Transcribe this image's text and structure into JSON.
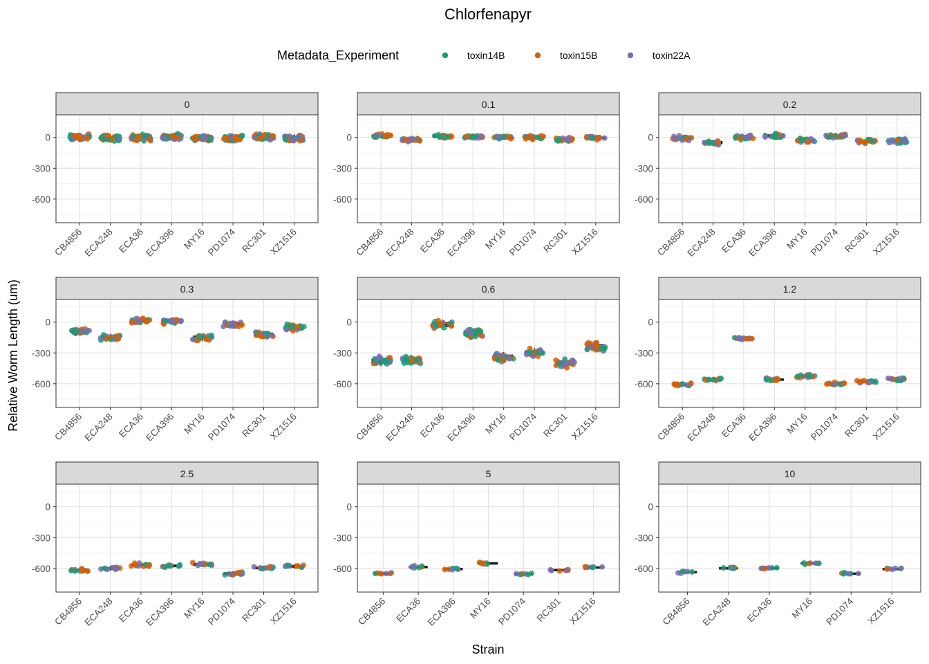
{
  "chart_data": {
    "type": "scatter",
    "title": "Chlorfenapyr",
    "xlabel": "Strain",
    "ylabel": "Relative Worm Length (um)",
    "ylim": [
      -830,
      220
    ],
    "yticks": [
      0,
      -300,
      -600
    ],
    "legend": {
      "title": "Metadata_Experiment",
      "position": "top",
      "entries": [
        {
          "name": "toxin14B",
          "color": "#1B9E77"
        },
        {
          "name": "toxin15B",
          "color": "#D95F02"
        },
        {
          "name": "toxin22A",
          "color": "#7570B3"
        }
      ]
    },
    "grid": true,
    "panels": [
      {
        "label": "0",
        "categories": [
          "CB4856",
          "ECA248",
          "ECA36",
          "ECA396",
          "MY16",
          "PD1074",
          "RC301",
          "XZ1516"
        ],
        "values": [
          5,
          -5,
          0,
          5,
          -5,
          -5,
          5,
          -5
        ],
        "spread": 40,
        "npts": 45
      },
      {
        "label": "0.1",
        "categories": [
          "CB4856",
          "ECA248",
          "ECA36",
          "ECA396",
          "MY16",
          "PD1074",
          "RC301",
          "XZ1516"
        ],
        "values": [
          15,
          -25,
          10,
          5,
          0,
          0,
          -20,
          -5
        ],
        "spread": 25,
        "npts": 20
      },
      {
        "label": "0.2",
        "categories": [
          "CB4856",
          "ECA248",
          "ECA36",
          "ECA396",
          "MY16",
          "PD1074",
          "RC301",
          "XZ1516"
        ],
        "values": [
          -10,
          -50,
          0,
          15,
          -25,
          10,
          -35,
          -35
        ],
        "spread": 30,
        "npts": 20
      },
      {
        "label": "0.3",
        "categories": [
          "CB4856",
          "ECA248",
          "ECA36",
          "ECA396",
          "MY16",
          "PD1074",
          "RC301",
          "XZ1516"
        ],
        "values": [
          -90,
          -150,
          15,
          10,
          -150,
          -20,
          -120,
          -50
        ],
        "spread": 40,
        "npts": 25
      },
      {
        "label": "0.6",
        "categories": [
          "CB4856",
          "ECA248",
          "ECA36",
          "ECA396",
          "MY16",
          "PD1074",
          "RC301",
          "XZ1516"
        ],
        "values": [
          -380,
          -370,
          -25,
          -110,
          -340,
          -300,
          -400,
          -240
        ],
        "spread": 55,
        "npts": 28
      },
      {
        "label": "1.2",
        "categories": [
          "CB4856",
          "ECA248",
          "ECA36",
          "ECA396",
          "MY16",
          "PD1074",
          "RC301",
          "XZ1516"
        ],
        "values": [
          -610,
          -555,
          -160,
          -560,
          -525,
          -600,
          -580,
          -555
        ],
        "spread": 20,
        "npts": 14
      },
      {
        "label": "2.5",
        "categories": [
          "CB4856",
          "ECA248",
          "ECA36",
          "ECA396",
          "MY16",
          "PD1074",
          "RC301",
          "XZ1516"
        ],
        "values": [
          -615,
          -600,
          -565,
          -575,
          -560,
          -650,
          -595,
          -580
        ],
        "spread": 25,
        "npts": 12
      },
      {
        "label": "5",
        "categories": [
          "CB4856",
          "ECA36",
          "ECA396",
          "MY16",
          "PD1074",
          "RC301",
          "XZ1516"
        ],
        "values": [
          -650,
          -585,
          -605,
          -550,
          -655,
          -615,
          -590
        ],
        "spread": 15,
        "npts": 7
      },
      {
        "label": "10",
        "categories": [
          "CB4856",
          "ECA248",
          "ECA36",
          "MY16",
          "PD1074",
          "XZ1516"
        ],
        "values": [
          -635,
          -598,
          -598,
          -550,
          -650,
          -605
        ],
        "spread": 15,
        "npts": 7
      }
    ]
  }
}
